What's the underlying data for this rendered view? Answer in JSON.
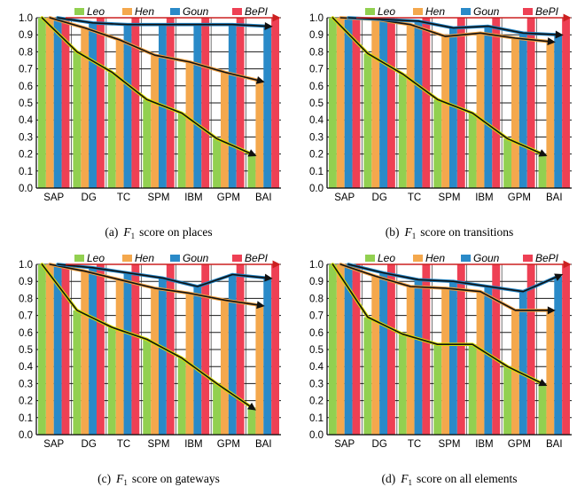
{
  "legend": [
    {
      "name": "Leo",
      "color": "#92d050"
    },
    {
      "name": "Hen",
      "color": "#f4a84d"
    },
    {
      "name": "Goun",
      "color": "#2a8ac8"
    },
    {
      "name": "BePI",
      "color": "#ee4054"
    }
  ],
  "colors": {
    "grid": "#1a1a1a",
    "trend_black": "#111111",
    "trend_red": "#cc2020",
    "leo_outline": "#d9e000",
    "hen_outline": "#f0a040",
    "goun_outline": "#1e80c0"
  },
  "chart_data": [
    {
      "type": "bar",
      "caption_prefix": "(a)",
      "caption_var": "F",
      "caption_sub": "1",
      "caption_text": "score on places",
      "categories": [
        "SAP",
        "DG",
        "TC",
        "SPM",
        "IBM",
        "GPM",
        "BAI"
      ],
      "yticks": [
        "0.0",
        "0.1",
        "0.2",
        "0.3",
        "0.4",
        "0.5",
        "0.6",
        "0.7",
        "0.8",
        "0.9",
        "1.0"
      ],
      "ylim": [
        0,
        1.0
      ],
      "grid": true,
      "legend_position": "top",
      "series": [
        {
          "name": "Leo",
          "values": [
            1.0,
            0.8,
            0.68,
            0.52,
            0.44,
            0.29,
            0.2
          ]
        },
        {
          "name": "Hen",
          "values": [
            1.0,
            0.94,
            0.87,
            0.78,
            0.74,
            0.68,
            0.63
          ]
        },
        {
          "name": "Goun",
          "values": [
            1.0,
            0.97,
            0.96,
            0.96,
            0.96,
            0.96,
            0.95
          ]
        },
        {
          "name": "BePI",
          "values": [
            1.0,
            1.0,
            1.0,
            1.0,
            1.0,
            1.0,
            1.0
          ]
        }
      ]
    },
    {
      "type": "bar",
      "caption_prefix": "(b)",
      "caption_var": "F",
      "caption_sub": "1",
      "caption_text": "score on transitions",
      "categories": [
        "SAP",
        "DG",
        "TC",
        "SPM",
        "IBM",
        "GPM",
        "BAI"
      ],
      "yticks": [
        "0.0",
        "0.1",
        "0.2",
        "0.3",
        "0.4",
        "0.5",
        "0.6",
        "0.7",
        "0.8",
        "0.9",
        "1.0"
      ],
      "ylim": [
        0,
        1.0
      ],
      "grid": true,
      "legend_position": "top",
      "series": [
        {
          "name": "Leo",
          "values": [
            1.0,
            0.79,
            0.67,
            0.52,
            0.44,
            0.29,
            0.2
          ]
        },
        {
          "name": "Hen",
          "values": [
            1.0,
            0.99,
            0.96,
            0.89,
            0.91,
            0.88,
            0.86
          ]
        },
        {
          "name": "Goun",
          "values": [
            1.0,
            0.99,
            0.98,
            0.94,
            0.95,
            0.91,
            0.9
          ]
        },
        {
          "name": "BePI",
          "values": [
            1.0,
            1.0,
            1.0,
            1.0,
            1.0,
            1.0,
            1.0
          ]
        }
      ]
    },
    {
      "type": "bar",
      "caption_prefix": "(c)",
      "caption_var": "F",
      "caption_sub": "1",
      "caption_text": "score on gateways",
      "categories": [
        "SAP",
        "DG",
        "TC",
        "SPM",
        "IBM",
        "GPM",
        "BAI"
      ],
      "yticks": [
        "0.0",
        "0.1",
        "0.2",
        "0.3",
        "0.4",
        "0.5",
        "0.6",
        "0.7",
        "0.8",
        "0.9",
        "1.0"
      ],
      "ylim": [
        0,
        1.0
      ],
      "grid": true,
      "legend_position": "top",
      "series": [
        {
          "name": "Leo",
          "values": [
            1.0,
            0.73,
            0.63,
            0.56,
            0.45,
            0.3,
            0.16
          ]
        },
        {
          "name": "Hen",
          "values": [
            1.0,
            0.96,
            0.91,
            0.86,
            0.83,
            0.79,
            0.76
          ]
        },
        {
          "name": "Goun",
          "values": [
            1.0,
            0.98,
            0.95,
            0.92,
            0.87,
            0.94,
            0.92
          ]
        },
        {
          "name": "BePI",
          "values": [
            1.0,
            1.0,
            1.0,
            1.0,
            1.0,
            1.0,
            1.0
          ]
        }
      ]
    },
    {
      "type": "bar",
      "caption_prefix": "(d)",
      "caption_var": "F",
      "caption_sub": "1",
      "caption_text": "score on all elements",
      "categories": [
        "SAP",
        "DG",
        "TC",
        "SPM",
        "IBM",
        "GPM",
        "BAI"
      ],
      "yticks": [
        "0.0",
        "0.1",
        "0.2",
        "0.3",
        "0.4",
        "0.5",
        "0.6",
        "0.7",
        "0.8",
        "0.9",
        "1.0"
      ],
      "ylim": [
        0,
        1.0
      ],
      "grid": true,
      "legend_position": "top",
      "series": [
        {
          "name": "Leo",
          "values": [
            1.0,
            0.69,
            0.59,
            0.53,
            0.53,
            0.4,
            0.3
          ]
        },
        {
          "name": "Hen",
          "values": [
            1.0,
            0.93,
            0.87,
            0.86,
            0.84,
            0.73,
            0.73
          ]
        },
        {
          "name": "Goun",
          "values": [
            1.0,
            0.95,
            0.91,
            0.9,
            0.87,
            0.84,
            0.93
          ]
        },
        {
          "name": "BePI",
          "values": [
            1.0,
            1.0,
            1.0,
            1.0,
            1.0,
            1.0,
            1.0
          ]
        }
      ]
    }
  ]
}
